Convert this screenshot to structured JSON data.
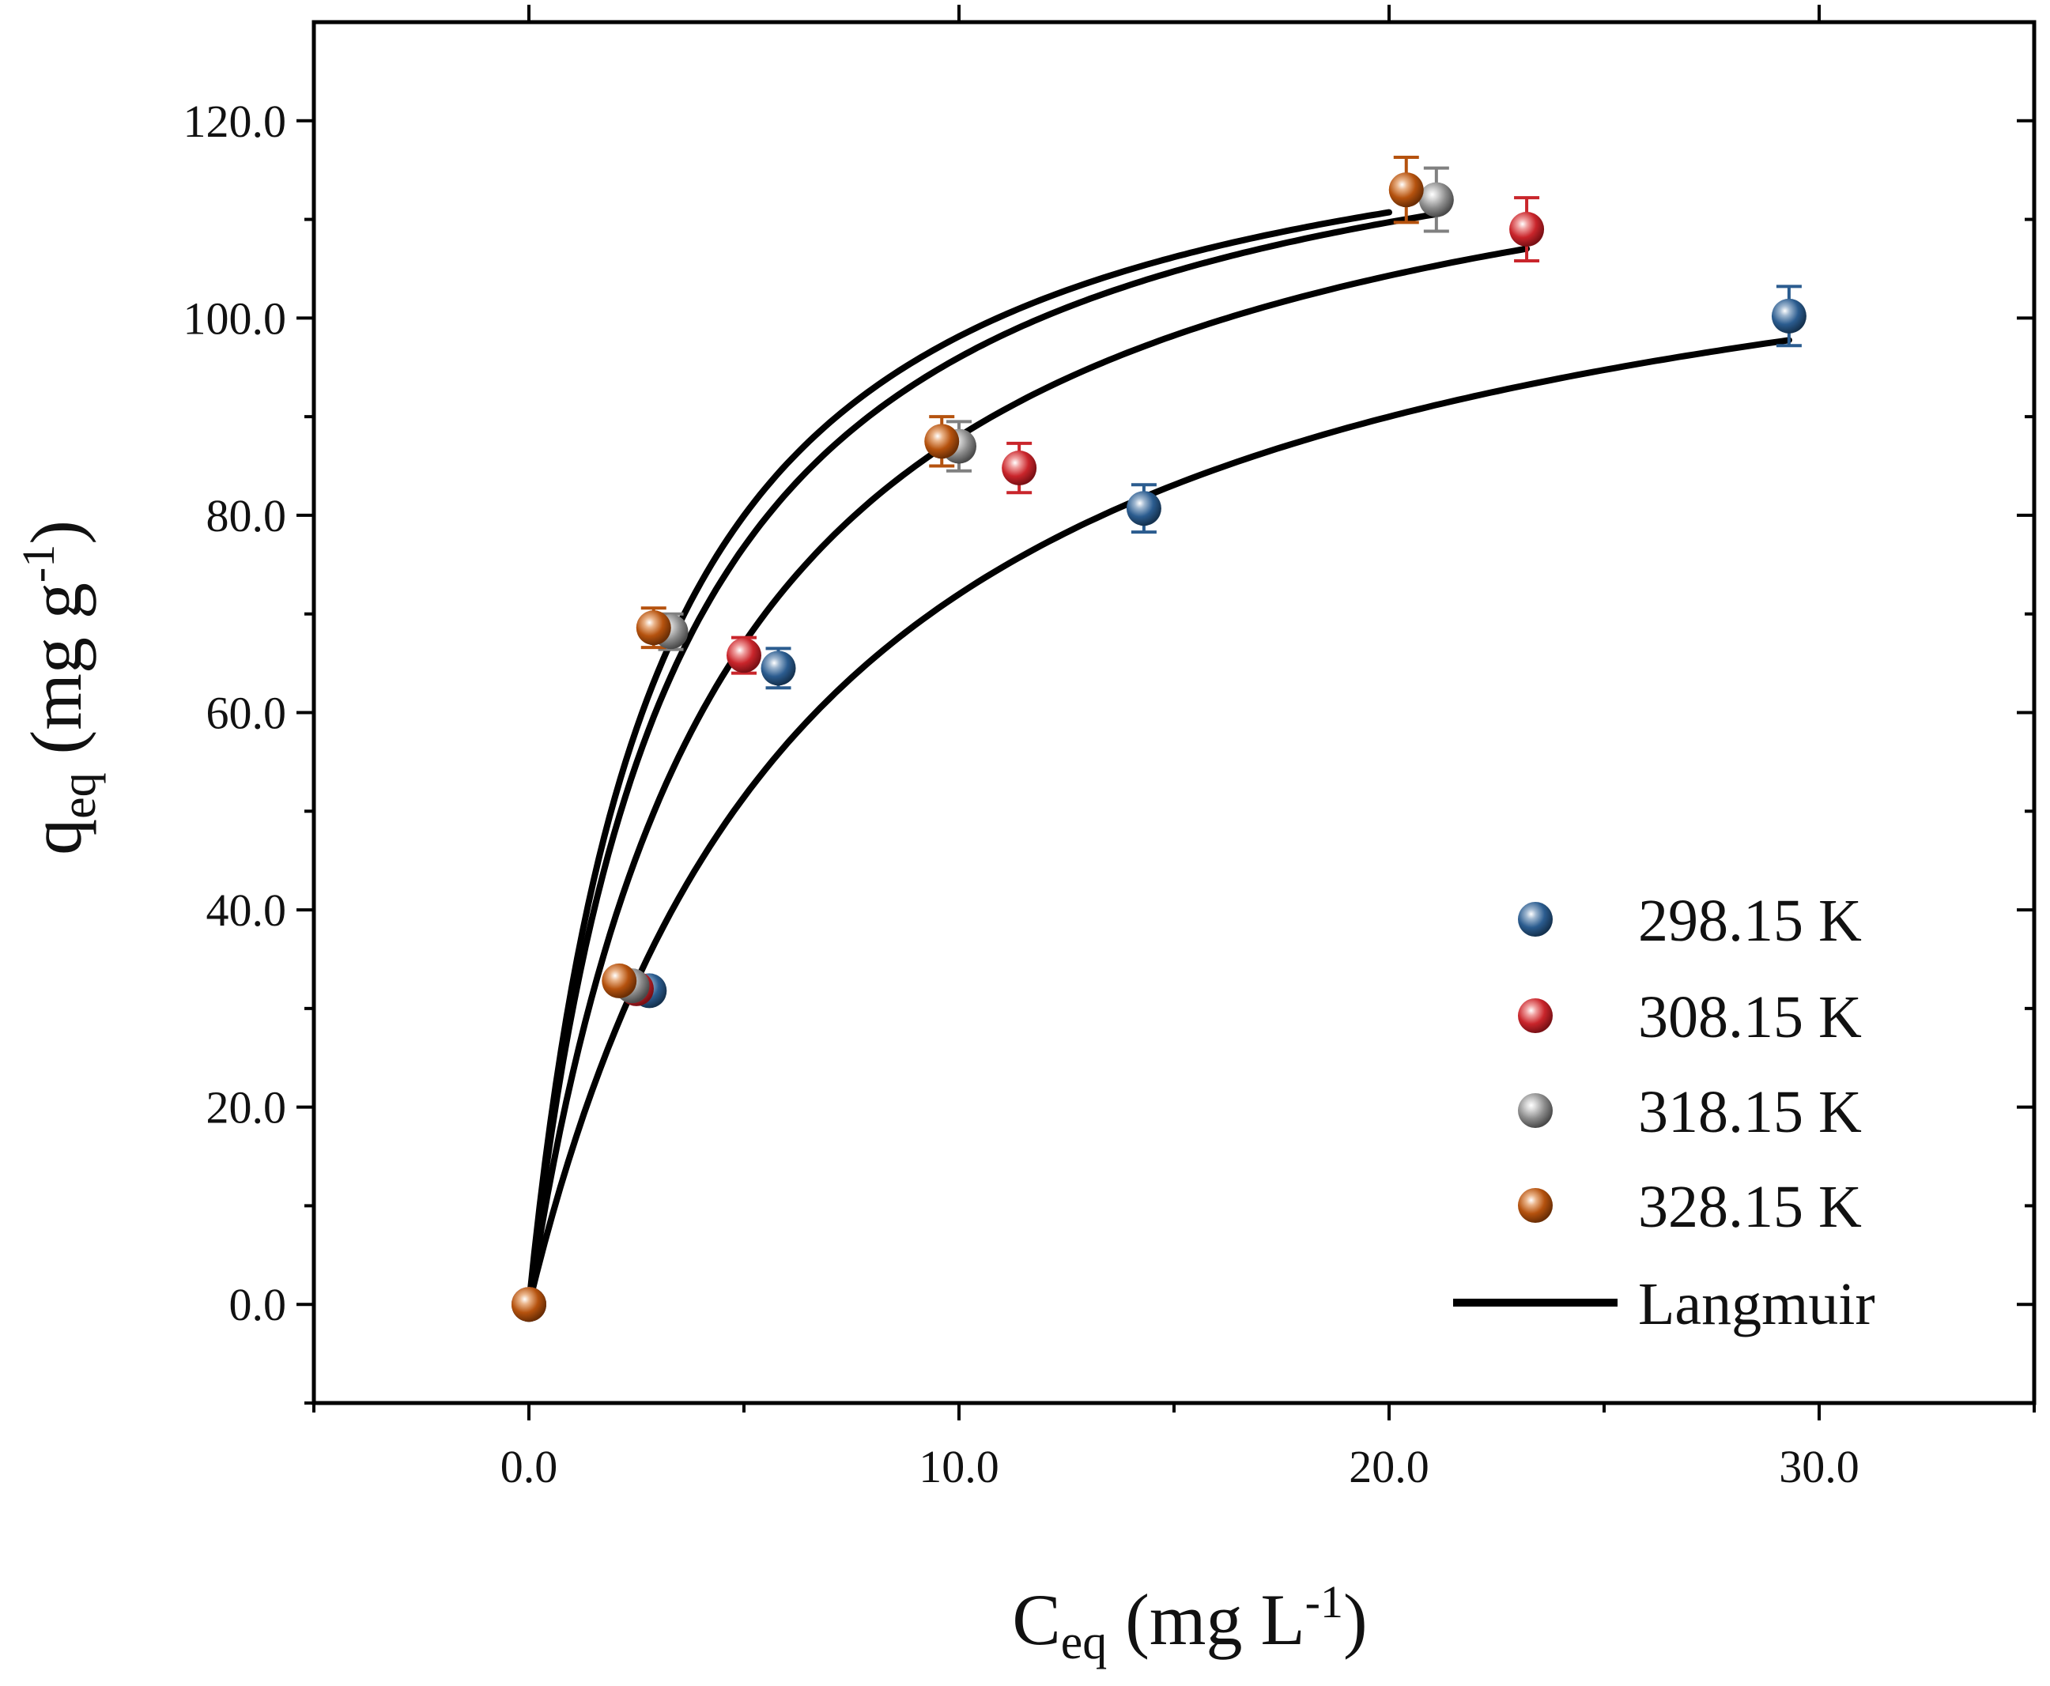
{
  "chart_data": {
    "type": "scatter",
    "title": "",
    "xlabel": {
      "main": "C",
      "sub": "eq",
      "units": " (mg L",
      "sup": "-1",
      "close": ")"
    },
    "ylabel": {
      "main": "q",
      "sub": "eq",
      "units": " (mg g",
      "sup": "-1",
      "close": ")"
    },
    "xlim": [
      -5,
      35
    ],
    "ylim": [
      -10,
      130
    ],
    "xticks": [
      0,
      10,
      20,
      30
    ],
    "xtick_labels": [
      "0.0",
      "10.0",
      "20.0",
      "30.0"
    ],
    "xminor": [
      -5,
      5,
      15,
      25,
      35
    ],
    "yticks": [
      0,
      20,
      40,
      60,
      80,
      100,
      120
    ],
    "ytick_labels": [
      "0.0",
      "20.0",
      "40.0",
      "60.0",
      "80.0",
      "100.0",
      "120.0"
    ],
    "yminor": [
      -10,
      10,
      30,
      50,
      70,
      90,
      110
    ],
    "grid": false,
    "legend_position": "bottom-right",
    "series": [
      {
        "name": "298.15 K",
        "color": "#2b5c8f",
        "errcolor": "#2b5c8f",
        "x": [
          0,
          2.8,
          5.8,
          14.3,
          29.3
        ],
        "y": [
          0,
          31.8,
          64.5,
          80.7,
          100.2
        ],
        "err": [
          0,
          1.0,
          2.0,
          2.4,
          3.0
        ]
      },
      {
        "name": "308.15 K",
        "color": "#c9252b",
        "errcolor": "#c9252b",
        "x": [
          0,
          2.5,
          5.0,
          11.4,
          23.2
        ],
        "y": [
          0,
          32.0,
          65.8,
          84.8,
          109.0
        ],
        "err": [
          0,
          1.0,
          1.8,
          2.5,
          3.2
        ]
      },
      {
        "name": "318.15 K",
        "color": "#8c8c8c",
        "errcolor": "#808080",
        "x": [
          0,
          2.4,
          3.3,
          10.0,
          21.1
        ],
        "y": [
          0,
          32.3,
          68.2,
          87.0,
          112.0
        ],
        "err": [
          0,
          1.0,
          1.8,
          2.5,
          3.2
        ]
      },
      {
        "name": "328.15 K",
        "color": "#b5520e",
        "errcolor": "#b5520e",
        "x": [
          0,
          2.1,
          2.9,
          9.6,
          20.4
        ],
        "y": [
          0,
          32.8,
          68.6,
          87.5,
          113.0
        ],
        "err": [
          0,
          1.0,
          2.0,
          2.5,
          3.3
        ]
      }
    ],
    "fits": [
      {
        "name": "Langmuir",
        "qmax": 120,
        "KL": 0.15,
        "xmax": 29.3
      },
      {
        "name": "Langmuir",
        "qmax": 128,
        "KL": 0.22,
        "xmax": 23.2
      },
      {
        "name": "Langmuir",
        "qmax": 128,
        "KL": 0.3,
        "xmax": 21.1
      },
      {
        "name": "Langmuir",
        "qmax": 127,
        "KL": 0.34,
        "xmax": 20.0
      }
    ],
    "legend": [
      "298.15 K",
      "308.15 K",
      "318.15 K",
      "328.15 K",
      "Langmuir"
    ]
  }
}
